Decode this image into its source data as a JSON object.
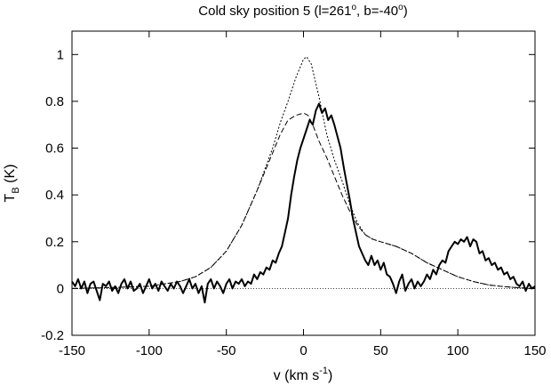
{
  "chart_data": {
    "type": "line",
    "title": {
      "main": "Cold sky position 5 (l=261",
      "l_deg": "o",
      "mid": ", b=-40",
      "b_deg": "o",
      "end": ")"
    },
    "xlabel": {
      "main": "v (km s",
      "sup": "-1",
      "end": ")"
    },
    "ylabel": {
      "main": "T",
      "sub": "B",
      "end": " (K)"
    },
    "xlim": [
      -150,
      150
    ],
    "ylim": [
      -0.2,
      1.1
    ],
    "xticks": [
      -150,
      -100,
      -50,
      0,
      50,
      100,
      150
    ],
    "xtick_labels": [
      "-150",
      "-100",
      "-50",
      "0",
      "50",
      "100",
      "150"
    ],
    "yticks": [
      -0.2,
      0,
      0.2,
      0.4,
      0.6,
      0.8,
      1.0
    ],
    "ytick_labels": [
      "-0.2",
      "0",
      "0.2",
      "0.4",
      "0.6",
      "0.8",
      "1"
    ],
    "grid": false,
    "legend": "none",
    "zero_line": true,
    "series": [
      {
        "style": "solid-thick",
        "points": [
          [
            -150,
            0.03
          ],
          [
            -148,
            0.01
          ],
          [
            -146,
            0.04
          ],
          [
            -144,
            0.0
          ],
          [
            -142,
            0.03
          ],
          [
            -140,
            -0.02
          ],
          [
            -138,
            0.02
          ],
          [
            -136,
            0.03
          ],
          [
            -134,
            -0.01
          ],
          [
            -132,
            -0.05
          ],
          [
            -130,
            0.02
          ],
          [
            -128,
            0.01
          ],
          [
            -126,
            0.03
          ],
          [
            -124,
            -0.01
          ],
          [
            -122,
            0.01
          ],
          [
            -120,
            -0.02
          ],
          [
            -118,
            0.02
          ],
          [
            -116,
            0.04
          ],
          [
            -114,
            0.0
          ],
          [
            -112,
            0.03
          ],
          [
            -110,
            -0.01
          ],
          [
            -108,
            0.0
          ],
          [
            -106,
            0.02
          ],
          [
            -104,
            -0.02
          ],
          [
            -102,
            0.01
          ],
          [
            -100,
            0.04
          ],
          [
            -98,
            0.0
          ],
          [
            -96,
            0.02
          ],
          [
            -94,
            -0.01
          ],
          [
            -92,
            0.03
          ],
          [
            -90,
            0.01
          ],
          [
            -88,
            -0.01
          ],
          [
            -86,
            0.02
          ],
          [
            -84,
            0.0
          ],
          [
            -82,
            0.03
          ],
          [
            -80,
            0.01
          ],
          [
            -78,
            -0.02
          ],
          [
            -76,
            0.01
          ],
          [
            -74,
            0.04
          ],
          [
            -72,
            0.0
          ],
          [
            -70,
            0.02
          ],
          [
            -68,
            -0.02
          ],
          [
            -66,
            0.01
          ],
          [
            -64,
            -0.06
          ],
          [
            -62,
            0.02
          ],
          [
            -60,
            0.04
          ],
          [
            -58,
            0.0
          ],
          [
            -56,
            0.03
          ],
          [
            -54,
            0.01
          ],
          [
            -52,
            -0.02
          ],
          [
            -50,
            0.02
          ],
          [
            -48,
            0.04
          ],
          [
            -46,
            0.0
          ],
          [
            -44,
            0.03
          ],
          [
            -42,
            0.02
          ],
          [
            -40,
            0.04
          ],
          [
            -38,
            0.01
          ],
          [
            -36,
            0.03
          ],
          [
            -34,
            0.02
          ],
          [
            -32,
            0.06
          ],
          [
            -30,
            0.04
          ],
          [
            -28,
            0.07
          ],
          [
            -26,
            0.06
          ],
          [
            -24,
            0.09
          ],
          [
            -22,
            0.08
          ],
          [
            -20,
            0.12
          ],
          [
            -18,
            0.11
          ],
          [
            -16,
            0.15
          ],
          [
            -14,
            0.18
          ],
          [
            -12,
            0.24
          ],
          [
            -10,
            0.3
          ],
          [
            -8,
            0.4
          ],
          [
            -6,
            0.48
          ],
          [
            -4,
            0.55
          ],
          [
            -2,
            0.6
          ],
          [
            0,
            0.64
          ],
          [
            2,
            0.68
          ],
          [
            4,
            0.72
          ],
          [
            6,
            0.7
          ],
          [
            8,
            0.76
          ],
          [
            10,
            0.79
          ],
          [
            12,
            0.75
          ],
          [
            14,
            0.77
          ],
          [
            16,
            0.72
          ],
          [
            18,
            0.74
          ],
          [
            20,
            0.7
          ],
          [
            22,
            0.65
          ],
          [
            24,
            0.6
          ],
          [
            26,
            0.52
          ],
          [
            28,
            0.45
          ],
          [
            30,
            0.38
          ],
          [
            32,
            0.3
          ],
          [
            34,
            0.24
          ],
          [
            36,
            0.18
          ],
          [
            38,
            0.15
          ],
          [
            40,
            0.12
          ],
          [
            42,
            0.1
          ],
          [
            44,
            0.14
          ],
          [
            46,
            0.1
          ],
          [
            48,
            0.12
          ],
          [
            50,
            0.08
          ],
          [
            52,
            0.11
          ],
          [
            54,
            0.06
          ],
          [
            56,
            0.05
          ],
          [
            58,
            0.02
          ],
          [
            60,
            -0.02
          ],
          [
            62,
            0.03
          ],
          [
            64,
            0.06
          ],
          [
            66,
            -0.01
          ],
          [
            68,
            0.02
          ],
          [
            70,
            0.04
          ],
          [
            72,
            0.0
          ],
          [
            74,
            0.03
          ],
          [
            76,
            0.01
          ],
          [
            78,
            0.03
          ],
          [
            80,
            0.06
          ],
          [
            82,
            0.04
          ],
          [
            84,
            0.08
          ],
          [
            86,
            0.06
          ],
          [
            88,
            0.1
          ],
          [
            90,
            0.12
          ],
          [
            92,
            0.11
          ],
          [
            94,
            0.16
          ],
          [
            96,
            0.18
          ],
          [
            98,
            0.2
          ],
          [
            100,
            0.19
          ],
          [
            102,
            0.21
          ],
          [
            104,
            0.2
          ],
          [
            106,
            0.22
          ],
          [
            108,
            0.18
          ],
          [
            110,
            0.21
          ],
          [
            112,
            0.2
          ],
          [
            114,
            0.15
          ],
          [
            116,
            0.16
          ],
          [
            118,
            0.12
          ],
          [
            120,
            0.13
          ],
          [
            122,
            0.1
          ],
          [
            124,
            0.11
          ],
          [
            126,
            0.08
          ],
          [
            128,
            0.09
          ],
          [
            130,
            0.06
          ],
          [
            132,
            0.07
          ],
          [
            134,
            0.04
          ],
          [
            136,
            0.05
          ],
          [
            138,
            0.02
          ],
          [
            140,
            0.01
          ],
          [
            142,
            0.03
          ],
          [
            144,
            -0.01
          ],
          [
            146,
            0.02
          ],
          [
            148,
            0.0
          ],
          [
            150,
            0.01
          ]
        ]
      },
      {
        "style": "dotted",
        "points": [
          [
            -150,
            0.0
          ],
          [
            -120,
            0.005
          ],
          [
            -100,
            0.01
          ],
          [
            -80,
            0.03
          ],
          [
            -70,
            0.05
          ],
          [
            -60,
            0.09
          ],
          [
            -50,
            0.16
          ],
          [
            -40,
            0.27
          ],
          [
            -30,
            0.42
          ],
          [
            -20,
            0.6
          ],
          [
            -15,
            0.71
          ],
          [
            -10,
            0.8
          ],
          [
            -5,
            0.9
          ],
          [
            0,
            0.98
          ],
          [
            2,
            0.99
          ],
          [
            5,
            0.96
          ],
          [
            10,
            0.82
          ],
          [
            15,
            0.66
          ],
          [
            20,
            0.55
          ],
          [
            25,
            0.46
          ],
          [
            30,
            0.36
          ],
          [
            35,
            0.28
          ],
          [
            40,
            0.23
          ],
          [
            45,
            0.21
          ],
          [
            50,
            0.2
          ],
          [
            55,
            0.19
          ],
          [
            60,
            0.18
          ],
          [
            70,
            0.15
          ],
          [
            80,
            0.11
          ],
          [
            90,
            0.08
          ],
          [
            100,
            0.05
          ],
          [
            110,
            0.03
          ],
          [
            120,
            0.015
          ],
          [
            130,
            0.008
          ],
          [
            140,
            0.003
          ],
          [
            150,
            0.0
          ]
        ]
      },
      {
        "style": "dashed",
        "points": [
          [
            -150,
            0.0
          ],
          [
            -120,
            0.005
          ],
          [
            -100,
            0.01
          ],
          [
            -80,
            0.03
          ],
          [
            -70,
            0.05
          ],
          [
            -60,
            0.09
          ],
          [
            -50,
            0.16
          ],
          [
            -40,
            0.27
          ],
          [
            -30,
            0.42
          ],
          [
            -20,
            0.58
          ],
          [
            -15,
            0.66
          ],
          [
            -10,
            0.72
          ],
          [
            -5,
            0.74
          ],
          [
            0,
            0.75
          ],
          [
            3,
            0.74
          ],
          [
            6,
            0.7
          ],
          [
            10,
            0.63
          ],
          [
            15,
            0.56
          ],
          [
            20,
            0.48
          ],
          [
            25,
            0.4
          ],
          [
            30,
            0.33
          ],
          [
            35,
            0.27
          ],
          [
            40,
            0.23
          ],
          [
            45,
            0.21
          ],
          [
            50,
            0.2
          ],
          [
            55,
            0.19
          ],
          [
            60,
            0.18
          ],
          [
            70,
            0.15
          ],
          [
            80,
            0.11
          ],
          [
            90,
            0.08
          ],
          [
            100,
            0.05
          ],
          [
            110,
            0.03
          ],
          [
            120,
            0.015
          ],
          [
            130,
            0.008
          ],
          [
            140,
            0.003
          ],
          [
            150,
            0.0
          ]
        ]
      }
    ]
  }
}
